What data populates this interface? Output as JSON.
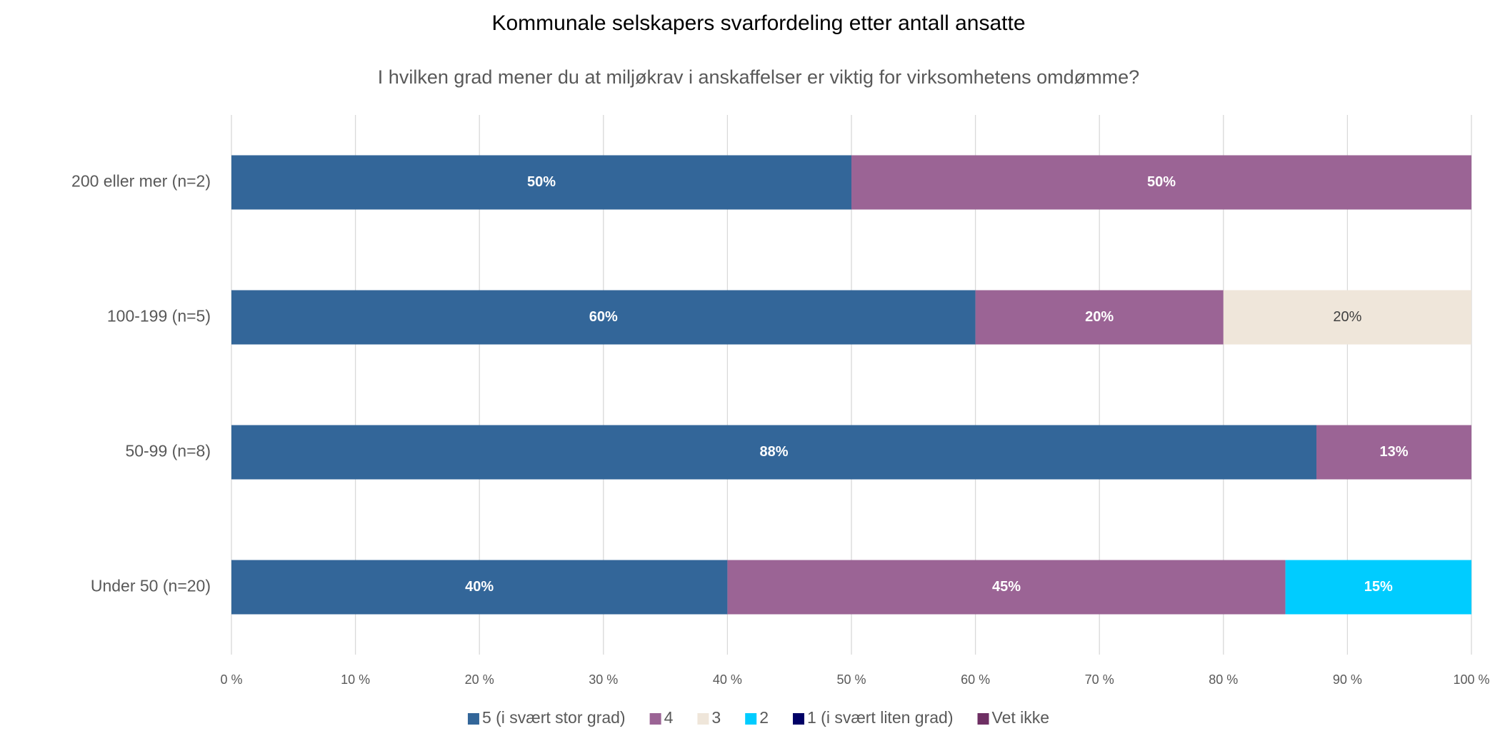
{
  "chart_data": {
    "type": "stacked_barh",
    "title": "Kommunale selskapers svarfordeling etter antall ansatte",
    "subtitle": "I hvilken grad mener du at miljøkrav i anskaffelser er viktig for virksomhetens omdømme?",
    "categories": [
      "200 eller mer (n=2)",
      "100-199 (n=5)",
      "50-99 (n=8)",
      "Under 50 (n=20)"
    ],
    "series": [
      {
        "name": "5 (i svært stor grad)",
        "color": "#336699",
        "values": [
          50,
          60,
          87.5,
          40
        ],
        "value_labels": [
          "50%",
          "60%",
          "88%",
          "40%"
        ]
      },
      {
        "name": "4",
        "color": "#9b6495",
        "values": [
          50,
          20,
          12.5,
          45
        ],
        "value_labels": [
          "50%",
          "20%",
          "13%",
          "45%"
        ]
      },
      {
        "name": "3",
        "color": "#efe6da",
        "values": [
          0,
          20,
          0,
          0
        ],
        "value_labels": [
          null,
          "20%",
          null,
          null
        ]
      },
      {
        "name": "2",
        "color": "#00ccff",
        "values": [
          0,
          0,
          0,
          15
        ],
        "value_labels": [
          null,
          null,
          null,
          "15%"
        ]
      },
      {
        "name": "1 (i svært liten grad)",
        "color": "#000066",
        "values": [
          0,
          0,
          0,
          0
        ],
        "value_labels": [
          null,
          null,
          null,
          null
        ]
      },
      {
        "name": "Vet ikke",
        "color": "#6e2f63",
        "values": [
          0,
          0,
          0,
          0
        ],
        "value_labels": [
          null,
          null,
          null,
          null
        ]
      }
    ],
    "xlim": [
      0,
      100
    ],
    "xticks": [
      {
        "value": 0,
        "label": "0 %"
      },
      {
        "value": 10,
        "label": "10 %"
      },
      {
        "value": 20,
        "label": "20 %"
      },
      {
        "value": 30,
        "label": "30 %"
      },
      {
        "value": 40,
        "label": "40 %"
      },
      {
        "value": 50,
        "label": "50 %"
      },
      {
        "value": 60,
        "label": "60 %"
      },
      {
        "value": 70,
        "label": "70 %"
      },
      {
        "value": 80,
        "label": "80 %"
      },
      {
        "value": 90,
        "label": "90 %"
      },
      {
        "value": 100,
        "label": "100 %"
      }
    ],
    "grid": true,
    "legend": "bottom"
  }
}
